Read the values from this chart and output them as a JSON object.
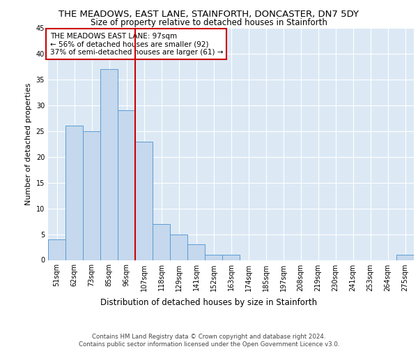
{
  "title": "THE MEADOWS, EAST LANE, STAINFORTH, DONCASTER, DN7 5DY",
  "subtitle": "Size of property relative to detached houses in Stainforth",
  "xlabel": "Distribution of detached houses by size in Stainforth",
  "ylabel": "Number of detached properties",
  "bar_values": [
    4,
    26,
    25,
    37,
    29,
    23,
    7,
    5,
    3,
    1,
    1,
    0,
    0,
    0,
    0,
    0,
    0,
    0,
    0,
    0,
    1
  ],
  "bar_labels": [
    "51sqm",
    "62sqm",
    "73sqm",
    "85sqm",
    "96sqm",
    "107sqm",
    "118sqm",
    "129sqm",
    "141sqm",
    "152sqm",
    "163sqm",
    "174sqm",
    "185sqm",
    "197sqm",
    "208sqm",
    "219sqm",
    "230sqm",
    "241sqm",
    "253sqm",
    "264sqm",
    "275sqm"
  ],
  "bar_color": "#c5d8ed",
  "bar_edge_color": "#5b9bd5",
  "annotation_text_line1": "THE MEADOWS EAST LANE: 97sqm",
  "annotation_text_line2": "← 56% of detached houses are smaller (92)",
  "annotation_text_line3": "37% of semi-detached houses are larger (61) →",
  "red_line_color": "#cc0000",
  "annotation_box_color": "#ffffff",
  "annotation_box_edge_color": "#cc0000",
  "ylim": [
    0,
    45
  ],
  "yticks": [
    0,
    5,
    10,
    15,
    20,
    25,
    30,
    35,
    40,
    45
  ],
  "background_color": "#dce9f5",
  "footer_text": "Contains HM Land Registry data © Crown copyright and database right 2024.\nContains public sector information licensed under the Open Government Licence v3.0.",
  "title_fontsize": 9.5,
  "subtitle_fontsize": 8.5,
  "xlabel_fontsize": 8.5,
  "ylabel_fontsize": 8,
  "tick_fontsize": 7,
  "annotation_fontsize": 7.5,
  "footer_fontsize": 6.2
}
